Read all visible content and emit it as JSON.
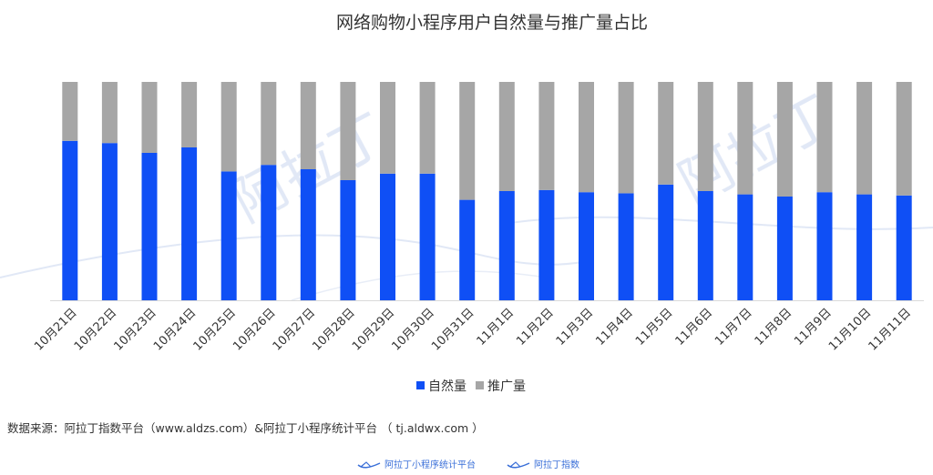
{
  "chart_data": {
    "type": "bar",
    "stacked": true,
    "percent_stacked": true,
    "title": "网络购物小程序用户自然量与推广量占比",
    "categories": [
      "10月21日",
      "10月22日",
      "10月23日",
      "10月24日",
      "10月25日",
      "10月26日",
      "10月27日",
      "10月28日",
      "10月29日",
      "10月30日",
      "10月31日",
      "11月1日",
      "11月2日",
      "11月3日",
      "11月4日",
      "11月5日",
      "11月6日",
      "11月7日",
      "11月8日",
      "11月9日",
      "11月10日",
      "11月11日"
    ],
    "series": [
      {
        "name": "自然量",
        "color": "#0f4ff5",
        "values": [
          0.73,
          0.72,
          0.675,
          0.7,
          0.59,
          0.62,
          0.6,
          0.55,
          0.58,
          0.58,
          0.46,
          0.5,
          0.505,
          0.495,
          0.49,
          0.53,
          0.5,
          0.485,
          0.475,
          0.495,
          0.485,
          0.48
        ]
      },
      {
        "name": "推广量",
        "color": "#a6a6a6",
        "values": [
          0.27,
          0.28,
          0.325,
          0.3,
          0.41,
          0.38,
          0.4,
          0.45,
          0.42,
          0.42,
          0.54,
          0.5,
          0.495,
          0.505,
          0.51,
          0.47,
          0.5,
          0.515,
          0.525,
          0.505,
          0.515,
          0.52
        ]
      }
    ],
    "ylim": [
      0,
      1
    ],
    "grid": false,
    "legend_position": "bottom"
  },
  "source": "数据来源：阿拉丁指数平台（www.aldzs.com）&阿拉丁小程序统计平台 （ tj.aldwx.com ）",
  "footer_logos": [
    "阿拉丁小程序统计平台",
    "阿拉丁指数"
  ],
  "watermark": "阿拉丁"
}
